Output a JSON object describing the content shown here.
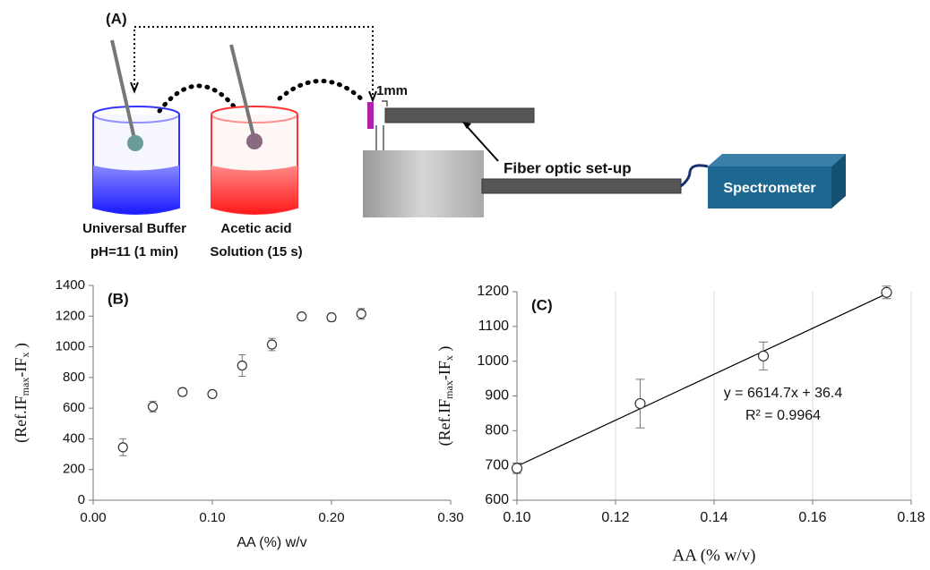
{
  "diagram": {
    "panel_label": "(A)",
    "gap_label": "1mm",
    "buffer_label": [
      "Universal Buffer",
      "pH=11 (1 min)"
    ],
    "acid_label": [
      "Acetic acid",
      "Solution (15 s)"
    ],
    "setup_label": "Fiber optic set-up",
    "spectrometer_label": "Spectrometer"
  },
  "chart_data": [
    {
      "type": "scatter",
      "panel_label": "(B)",
      "x_label": "AA (%) w/v",
      "y_label_parts": [
        "(Ref.IF",
        "max",
        "-IF",
        "x",
        " )"
      ],
      "x": [
        0.025,
        0.05,
        0.075,
        0.1,
        0.125,
        0.15,
        0.175,
        0.2,
        0.225
      ],
      "y": [
        345,
        610,
        705,
        692,
        878,
        1015,
        1198,
        1192,
        1215
      ],
      "errors": [
        55,
        35,
        25,
        15,
        70,
        40,
        18,
        25,
        35
      ],
      "color": "#333333",
      "xlim": [
        0,
        0.3
      ],
      "xticks": [
        {
          "value": 0,
          "label": "0.00"
        },
        {
          "value": 0.1,
          "label": "0.10"
        },
        {
          "value": 0.2,
          "label": "0.20"
        },
        {
          "value": 0.3,
          "label": "0.30"
        }
      ],
      "ylim": [
        0,
        1400
      ],
      "yticks": [
        0,
        200,
        400,
        600,
        800,
        1000,
        1200,
        1400
      ],
      "grid": false
    },
    {
      "type": "scatter",
      "panel_label": "(C)",
      "x_label": "AA (% w/v)",
      "y_label_parts": [
        "(Ref.IF",
        "max",
        "-IF",
        "x",
        " )"
      ],
      "x": [
        0.1,
        0.125,
        0.15,
        0.175
      ],
      "y": [
        692,
        878,
        1015,
        1198
      ],
      "errors": [
        15,
        70,
        40,
        18
      ],
      "color": "#333333",
      "trendline": {
        "slope": 6614.7,
        "intercept": 36.4
      },
      "equation": "y = 6614.7x + 36.4",
      "r2_label": "R² = 0.9964",
      "xlim": [
        0.1,
        0.18
      ],
      "xticks": [
        {
          "value": 0.1,
          "label": "0.10"
        },
        {
          "value": 0.12,
          "label": "0.12"
        },
        {
          "value": 0.14,
          "label": "0.14"
        },
        {
          "value": 0.16,
          "label": "0.16"
        },
        {
          "value": 0.18,
          "label": "0.18"
        }
      ],
      "ylim": [
        600,
        1200
      ],
      "yticks": [
        600,
        700,
        800,
        900,
        1000,
        1100,
        1200
      ],
      "grid": true
    }
  ]
}
